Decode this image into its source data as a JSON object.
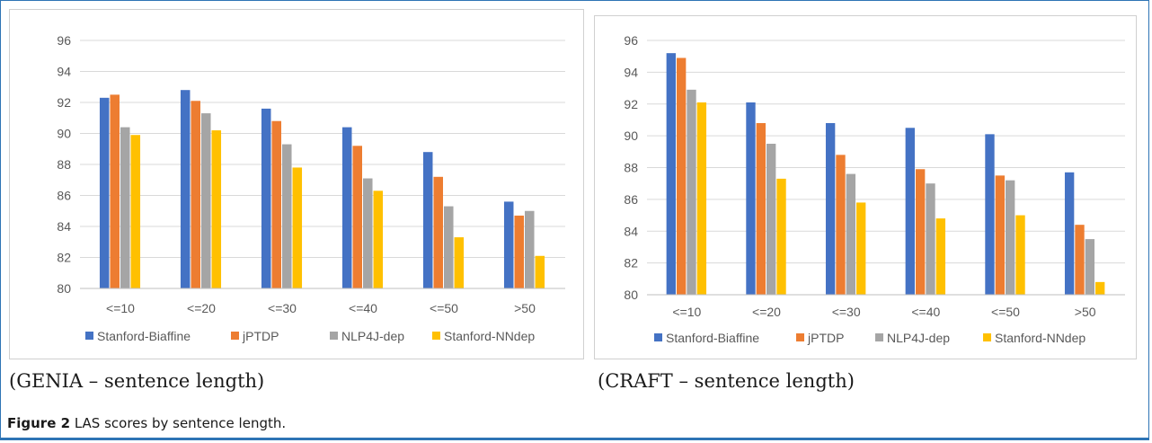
{
  "figure": {
    "label": "Figure 2",
    "text": "LAS scores by sentence length."
  },
  "colors": {
    "Stanford-Biaffine": "#4472c4",
    "jPTDP": "#ed7d31",
    "NLP4J-dep": "#a5a5a5",
    "Stanford-NNdep": "#ffc000",
    "grid": "#d9d9d9",
    "axis_text": "#595959"
  },
  "panels": [
    {
      "caption": "(GENIA – sentence length)"
    },
    {
      "caption": "(CRAFT – sentence length)"
    }
  ],
  "chart_data": [
    {
      "type": "bar",
      "categories": [
        "<=10",
        "<=20",
        "<=30",
        "<=40",
        "<=50",
        ">50"
      ],
      "series": [
        {
          "name": "Stanford-Biaffine",
          "values": [
            92.3,
            92.8,
            91.6,
            90.4,
            88.8,
            85.6
          ]
        },
        {
          "name": "jPTDP",
          "values": [
            92.5,
            92.1,
            90.8,
            89.2,
            87.2,
            84.7
          ]
        },
        {
          "name": "NLP4J-dep",
          "values": [
            90.4,
            91.3,
            89.3,
            87.1,
            85.3,
            85.0
          ]
        },
        {
          "name": "Stanford-NNdep",
          "values": [
            89.9,
            90.2,
            87.8,
            86.3,
            83.3,
            82.1
          ]
        }
      ],
      "yticks": [
        "80",
        "82",
        "84",
        "86",
        "88",
        "90",
        "92",
        "94",
        "96"
      ],
      "ylim": [
        80,
        96
      ],
      "grid": true,
      "legend": "bottom"
    },
    {
      "type": "bar",
      "categories": [
        "<=10",
        "<=20",
        "<=30",
        "<=40",
        "<=50",
        ">50"
      ],
      "series": [
        {
          "name": "Stanford-Biaffine",
          "values": [
            95.2,
            92.1,
            90.8,
            90.5,
            90.1,
            87.7
          ]
        },
        {
          "name": "jPTDP",
          "values": [
            94.9,
            90.8,
            88.8,
            87.9,
            87.5,
            84.4
          ]
        },
        {
          "name": "NLP4J-dep",
          "values": [
            92.9,
            89.5,
            87.6,
            87.0,
            87.2,
            83.5
          ]
        },
        {
          "name": "Stanford-NNdep",
          "values": [
            92.1,
            87.3,
            85.8,
            84.8,
            85.0,
            80.8
          ]
        }
      ],
      "yticks": [
        "80",
        "82",
        "84",
        "86",
        "88",
        "90",
        "92",
        "94",
        "96"
      ],
      "ylim": [
        80,
        96
      ],
      "grid": true,
      "legend": "bottom"
    }
  ]
}
